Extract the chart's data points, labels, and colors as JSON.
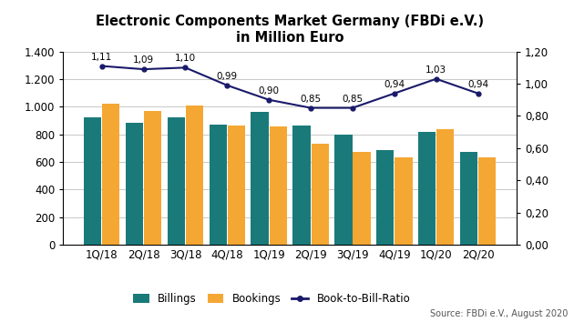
{
  "title_line1": "Electronic Components Market Germany (FBDi e.V.)",
  "title_line2": "in Million Euro",
  "categories": [
    "1Q/18",
    "2Q/18",
    "3Q/18",
    "4Q/18",
    "1Q/19",
    "2Q/19",
    "3Q/19",
    "4Q/19",
    "1Q/20",
    "2Q/20"
  ],
  "billings": [
    920,
    885,
    925,
    870,
    960,
    865,
    800,
    685,
    815,
    670
  ],
  "bookings": [
    1025,
    970,
    1010,
    865,
    858,
    735,
    675,
    635,
    840,
    635
  ],
  "book_to_bill": [
    1.11,
    1.09,
    1.1,
    0.99,
    0.9,
    0.85,
    0.85,
    0.94,
    1.03,
    0.94
  ],
  "btb_labels": [
    "1,11",
    "1,09",
    "1,10",
    "0,99",
    "0,90",
    "0,85",
    "0,85",
    "0,94",
    "1,03",
    "0,94"
  ],
  "bar_color_billings": "#1a7a7a",
  "bar_color_bookings": "#f5a733",
  "line_color_btb": "#1a1a6a",
  "ylim_left": [
    0,
    1400
  ],
  "ylim_right": [
    0.0,
    1.2
  ],
  "yticks_left": [
    0,
    200,
    400,
    600,
    800,
    1000,
    1200,
    1400
  ],
  "yticks_right": [
    0.0,
    0.2,
    0.4,
    0.6,
    0.8,
    1.0,
    1.2
  ],
  "source_text": "Source: FBDi e.V., August 2020",
  "legend_labels": [
    "Billings",
    "Bookings",
    "Book-to-Bill-Ratio"
  ],
  "background_color": "#ffffff",
  "grid_color": "#c8c8c8"
}
